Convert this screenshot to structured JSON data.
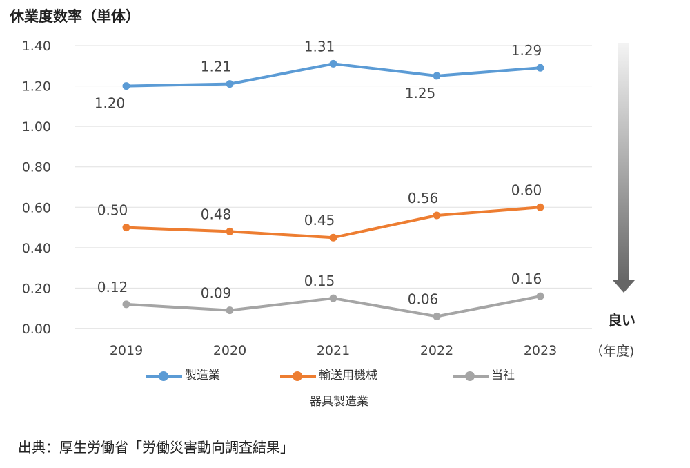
{
  "chart_data": {
    "type": "line",
    "title": "休業度数率（単体）",
    "xlabel": "（年度)",
    "ylabel": "",
    "categories": [
      "2019",
      "2020",
      "2021",
      "2022",
      "2023"
    ],
    "ylim": [
      0,
      1.4
    ],
    "yticks": [
      "0.00",
      "0.20",
      "0.40",
      "0.60",
      "0.80",
      "1.00",
      "1.20",
      "1.40"
    ],
    "grid": true,
    "legend": "bottom",
    "series": [
      {
        "name": "製造業",
        "values": [
          1.2,
          1.21,
          1.31,
          1.25,
          1.29
        ],
        "labels": [
          "1.20",
          "1.21",
          "1.31",
          "1.25",
          "1.29"
        ],
        "color": "#5b9bd5"
      },
      {
        "name": "輸送用機械器具製造業",
        "values": [
          0.5,
          0.48,
          0.45,
          0.56,
          0.6
        ],
        "labels": [
          "0.50",
          "0.48",
          "0.45",
          "0.56",
          "0.60"
        ],
        "color": "#ed7d31"
      },
      {
        "name": "当社",
        "values": [
          0.12,
          0.09,
          0.15,
          0.06,
          0.16
        ],
        "labels": [
          "0.12",
          "0.09",
          "0.15",
          "0.06",
          "0.16"
        ],
        "color": "#a5a5a5"
      }
    ],
    "annotation": "良い"
  },
  "legend": {
    "blue": "製造業",
    "orange_line1": "輸送用機械",
    "orange_line2": "器具製造業",
    "gray": "当社"
  },
  "source": "出典：厚生労働省「労働災害動向調査結果」"
}
